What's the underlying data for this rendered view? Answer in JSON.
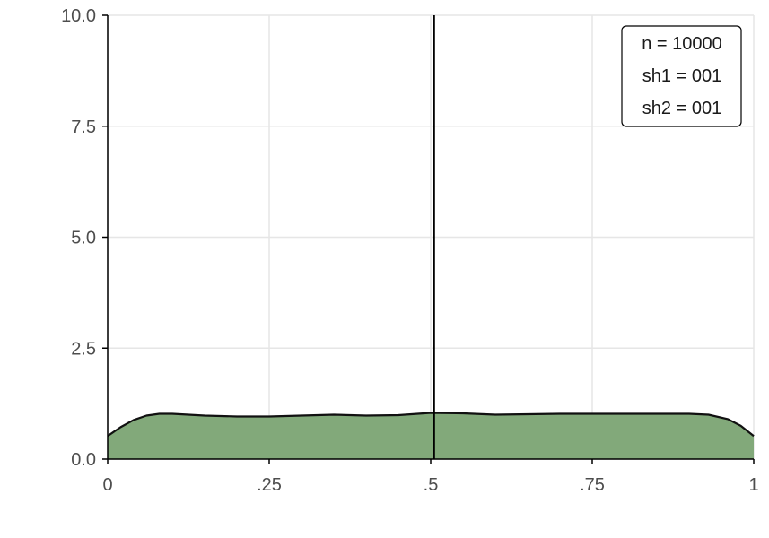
{
  "chart_data": {
    "type": "area",
    "title": "",
    "xlabel": "",
    "ylabel": "",
    "xlim": [
      0,
      1
    ],
    "ylim": [
      0,
      10
    ],
    "grid": true,
    "x_ticks": [
      {
        "value": 0,
        "label": "0"
      },
      {
        "value": 0.25,
        "label": ".25"
      },
      {
        "value": 0.5,
        "label": ".5"
      },
      {
        "value": 0.75,
        "label": ".75"
      },
      {
        "value": 1,
        "label": "1"
      }
    ],
    "y_ticks": [
      {
        "value": 0,
        "label": "0.0"
      },
      {
        "value": 2.5,
        "label": "2.5"
      },
      {
        "value": 5,
        "label": "5.0"
      },
      {
        "value": 7.5,
        "label": "7.5"
      },
      {
        "value": 10,
        "label": "10.0"
      }
    ],
    "series": [
      {
        "x": [
          0,
          0.02,
          0.04,
          0.06,
          0.08,
          0.1,
          0.15,
          0.2,
          0.25,
          0.3,
          0.35,
          0.4,
          0.45,
          0.5,
          0.55,
          0.6,
          0.65,
          0.7,
          0.75,
          0.8,
          0.85,
          0.9,
          0.93,
          0.96,
          0.98,
          1.0
        ],
        "y": [
          0.52,
          0.72,
          0.88,
          0.98,
          1.02,
          1.02,
          0.98,
          0.96,
          0.96,
          0.98,
          1.0,
          0.98,
          0.99,
          1.04,
          1.03,
          1.0,
          1.01,
          1.02,
          1.02,
          1.02,
          1.02,
          1.02,
          1.0,
          0.9,
          0.75,
          0.52
        ],
        "fill_color": "#82a97a",
        "line_color": "#111111"
      }
    ],
    "reference_line": {
      "x": 0.505,
      "color": "#000000"
    },
    "legend": {
      "position": "top-right",
      "entries": [
        "n = 10000",
        "sh1 = 001",
        "sh2 = 001"
      ]
    }
  }
}
